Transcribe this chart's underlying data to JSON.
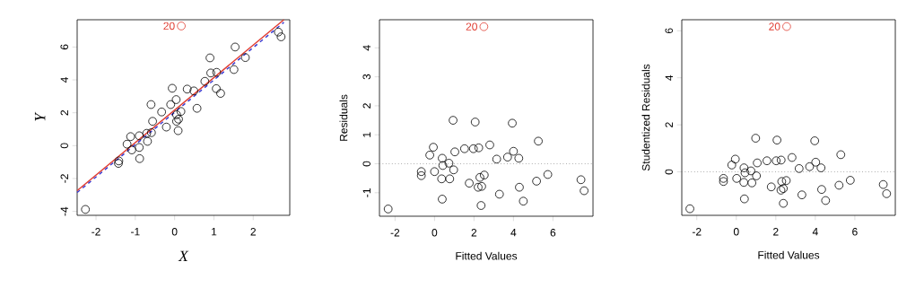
{
  "chart_data": [
    {
      "type": "scatter",
      "xlabel": "X",
      "ylabel": "Y",
      "xlim": [
        -2.48,
        2.93
      ],
      "ylim": [
        -4.24,
        7.66
      ],
      "xticks": [
        -2,
        -1,
        0,
        1,
        2
      ],
      "yticks": [
        -4,
        -2,
        0,
        2,
        4,
        6
      ],
      "marker": "circle",
      "annotations": [
        {
          "text": "20",
          "x": 0.17,
          "y": 7.28
        }
      ],
      "series": [
        {
          "color": "#000000",
          "x": [
            -2.27,
            -1.43,
            -1.42,
            -1.12,
            -1.21,
            -1.09,
            -0.9,
            -0.9,
            -0.89,
            -0.71,
            -0.69,
            -0.6,
            -0.56,
            -0.59,
            -0.33,
            -0.21,
            -0.1,
            -0.06,
            0.04,
            0.05,
            0.05,
            0.1,
            0.16,
            0.09,
            0.32,
            0.49,
            0.57,
            0.77,
            0.9,
            0.92,
            1.07,
            1.06,
            1.17,
            1.51,
            1.54,
            1.8,
            2.64,
            2.71
          ],
          "values": [
            -3.88,
            -1.08,
            -0.93,
            0.55,
            0.09,
            -0.26,
            0.6,
            -0.11,
            -0.79,
            0.75,
            0.26,
            2.5,
            1.48,
            0.79,
            2.05,
            1.13,
            2.5,
            3.49,
            2.8,
            1.88,
            1.48,
            1.61,
            2.08,
            0.91,
            3.44,
            3.33,
            2.27,
            3.91,
            5.34,
            4.42,
            4.46,
            3.47,
            3.18,
            4.63,
            6.0,
            5.36,
            6.91,
            6.62
          ]
        },
        {
          "color": "#e03c31",
          "x": [
            0.17
          ],
          "values": [
            7.28
          ]
        },
        {
          "type": "line",
          "color": "#3a3ad0",
          "line_style": "dashed",
          "marker": "none",
          "x": [
            -2.48,
            2.78
          ],
          "values": [
            -2.85,
            7.5
          ]
        },
        {
          "type": "line",
          "color": "#e03c31",
          "line_style": "solid",
          "marker": "none",
          "x": [
            -2.48,
            2.78
          ],
          "values": [
            -2.74,
            7.66
          ]
        }
      ]
    },
    {
      "type": "scatter",
      "xlabel": "Fitted Values",
      "ylabel": "Residuals",
      "xlim": [
        -2.79,
        8.03
      ],
      "ylim": [
        -1.81,
        4.97
      ],
      "xticks": [
        -2,
        0,
        2,
        4,
        6
      ],
      "yticks": [
        -1,
        0,
        1,
        2,
        3,
        4
      ],
      "marker": "circle",
      "ref_lines": [
        {
          "axis": "y",
          "value": 0,
          "color": "#808080",
          "line_style": "dotted"
        }
      ],
      "annotations": [
        {
          "text": "20",
          "x": 2.5,
          "y": 4.73
        }
      ],
      "series": [
        {
          "color": "#000000",
          "x": [
            -2.35,
            -0.67,
            -0.67,
            -0.24,
            -0.06,
            0,
            0.39,
            0.42,
            0.36,
            0.39,
            0.73,
            0.77,
            0.94,
            1.03,
            0.97,
            1.52,
            1.76,
            1.97,
            2.06,
            2.24,
            2.21,
            2.3,
            2.39,
            2.36,
            2.52,
            2.8,
            3.15,
            3.29,
            3.7,
            3.94,
            4.0,
            4.27,
            4.3,
            4.5,
            5.17,
            5.26,
            5.74,
            7.42,
            7.58
          ],
          "values": [
            -1.56,
            -0.27,
            -0.41,
            0.3,
            0.57,
            -0.27,
            0.19,
            -0.06,
            -0.52,
            -1.22,
            0.02,
            -0.52,
            1.5,
            0.41,
            -0.21,
            0.52,
            -0.67,
            0.52,
            1.44,
            0.55,
            -0.81,
            -0.47,
            -0.78,
            -1.44,
            -0.39,
            0.65,
            0.16,
            -1.05,
            0.23,
            1.4,
            0.43,
            0.19,
            -0.81,
            -1.29,
            -0.6,
            0.78,
            -0.37,
            -0.55,
            -0.93
          ]
        },
        {
          "color": "#e03c31",
          "x": [
            2.5
          ],
          "values": [
            4.73
          ]
        }
      ]
    },
    {
      "type": "scatter",
      "xlabel": "Fitted Values",
      "ylabel": "Studentized Residuals",
      "xlim": [
        -2.76,
        8.05
      ],
      "ylim": [
        -1.85,
        6.47
      ],
      "xticks": [
        -2,
        0,
        2,
        4,
        6
      ],
      "yticks": [
        0,
        2,
        4,
        6
      ],
      "marker": "circle",
      "ref_lines": [
        {
          "axis": "y",
          "value": 0,
          "color": "#808080",
          "line_style": "dotted"
        }
      ],
      "annotations": [
        {
          "text": "20",
          "x": 2.55,
          "y": 6.18
        }
      ],
      "series": [
        {
          "color": "#000000",
          "x": [
            -2.35,
            -0.65,
            -0.65,
            -0.23,
            -0.05,
            0.02,
            0.39,
            0.44,
            0.38,
            0.41,
            0.74,
            0.79,
            0.98,
            1.06,
            1.02,
            1.55,
            1.77,
            2.02,
            2.06,
            2.27,
            2.26,
            2.3,
            2.38,
            2.38,
            2.53,
            2.82,
            3.18,
            3.32,
            3.71,
            3.97,
            4.02,
            4.29,
            4.32,
            4.52,
            5.2,
            5.29,
            5.77,
            7.44,
            7.61
          ],
          "values": [
            -1.57,
            -0.28,
            -0.41,
            0.29,
            0.54,
            -0.28,
            0.17,
            -0.04,
            -0.45,
            -1.15,
            0.04,
            -0.47,
            1.43,
            0.38,
            -0.17,
            0.47,
            -0.64,
            0.47,
            1.35,
            0.5,
            -0.78,
            -0.41,
            -0.71,
            -1.34,
            -0.37,
            0.61,
            0.14,
            -0.98,
            0.22,
            1.32,
            0.41,
            0.17,
            -0.75,
            -1.22,
            -0.57,
            0.73,
            -0.36,
            -0.54,
            -0.93
          ]
        },
        {
          "color": "#e03c31",
          "x": [
            2.55
          ],
          "values": [
            6.18
          ]
        }
      ]
    }
  ]
}
